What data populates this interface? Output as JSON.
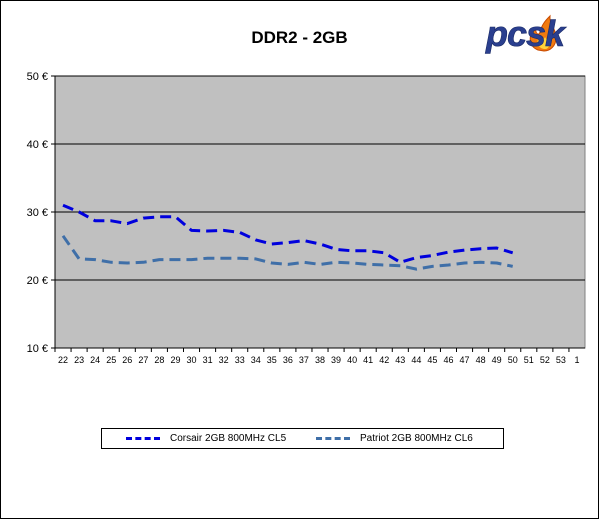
{
  "logo_text": "pcsk",
  "chart_data": {
    "type": "line",
    "title": "DDR2 - 2GB",
    "xlabel": "",
    "ylabel": "",
    "categories": [
      "22",
      "23",
      "24",
      "25",
      "26",
      "27",
      "28",
      "29",
      "30",
      "31",
      "32",
      "33",
      "34",
      "35",
      "36",
      "37",
      "38",
      "39",
      "40",
      "41",
      "42",
      "43",
      "44",
      "45",
      "46",
      "47",
      "48",
      "49",
      "50",
      "51",
      "52",
      "53",
      "1"
    ],
    "ylim": [
      10,
      50
    ],
    "yticks": [
      10,
      20,
      30,
      40,
      50
    ],
    "ytick_labels": [
      "10 €",
      "20 €",
      "30 €",
      "40 €",
      "50 €"
    ],
    "grid": "horizontal",
    "plot_background": "#c0c0c0",
    "legend_position": "bottom",
    "series": [
      {
        "name": "Corsair 2GB 800MHz CL5",
        "color": "#0000dd",
        "style": "dashed",
        "values": [
          31.0,
          30.0,
          28.7,
          28.7,
          28.3,
          29.1,
          29.3,
          29.3,
          27.3,
          27.2,
          27.3,
          27.0,
          25.9,
          25.3,
          25.5,
          25.8,
          25.3,
          24.5,
          24.3,
          24.3,
          24.0,
          22.6,
          23.3,
          23.6,
          24.1,
          24.4,
          24.6,
          24.7,
          24.0,
          null,
          null,
          null,
          null
        ]
      },
      {
        "name": "Patriot 2GB 800MHz CL6",
        "color": "#3f6fa8",
        "style": "dashed",
        "values": [
          26.5,
          23.1,
          23.0,
          22.6,
          22.5,
          22.6,
          23.0,
          23.0,
          23.0,
          23.2,
          23.2,
          23.2,
          23.1,
          22.5,
          22.3,
          22.6,
          22.3,
          22.6,
          22.5,
          22.3,
          22.2,
          22.1,
          21.6,
          22.0,
          22.2,
          22.5,
          22.6,
          22.5,
          22.0,
          null,
          null,
          null,
          null
        ]
      }
    ]
  }
}
